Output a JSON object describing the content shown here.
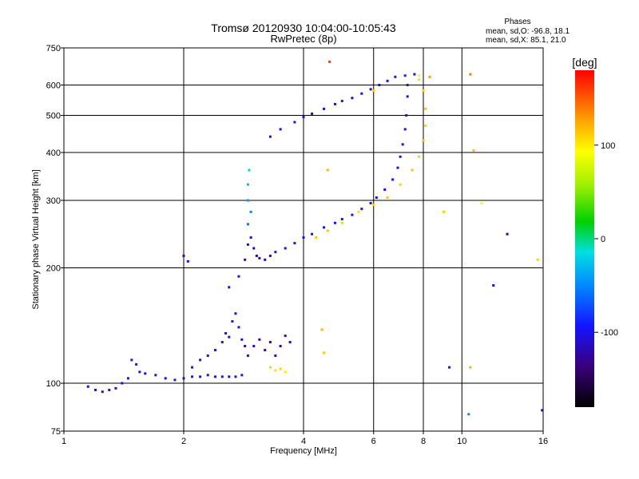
{
  "chart_data": {
    "type": "scatter",
    "title": "Tromsø 20120930 10:04:00-10:05:43",
    "subtitle": "RwPretec (8p)",
    "xlabel": "Frequency [MHz]",
    "ylabel": "Stationary phase Virtual Height [km]",
    "x_scale": "log",
    "y_scale": "log",
    "xlim": [
      1,
      16
    ],
    "ylim": [
      75,
      750
    ],
    "x_ticks": [
      1,
      2,
      4,
      6,
      8,
      10,
      16
    ],
    "y_ticks": [
      75,
      100,
      200,
      300,
      400,
      500,
      600,
      750
    ],
    "grid": true,
    "stats": {
      "heading": "Phases",
      "o_line": "mean, sd,O: -96.8, 18.1",
      "x_line": "mean, sd,X:  85.1, 21.0"
    },
    "colorbar": {
      "label": "[deg]",
      "range": [
        -180,
        180
      ],
      "ticks": [
        100,
        0,
        -100
      ]
    },
    "series": [
      {
        "points": [
          [
            1.15,
            98,
            -110
          ],
          [
            1.2,
            96,
            -105
          ],
          [
            1.25,
            95,
            -115
          ],
          [
            1.3,
            96,
            -100
          ],
          [
            1.35,
            97,
            -110
          ],
          [
            1.4,
            100,
            -105
          ],
          [
            1.45,
            103,
            -100
          ],
          [
            1.48,
            115,
            -100
          ],
          [
            1.52,
            112,
            -95
          ],
          [
            1.55,
            107,
            -100
          ],
          [
            1.6,
            106,
            -105
          ],
          [
            1.7,
            105,
            -100
          ],
          [
            1.8,
            103,
            -105
          ],
          [
            1.9,
            102,
            -100
          ],
          [
            2.0,
            103,
            -105
          ],
          [
            2.1,
            104,
            -100
          ],
          [
            2.2,
            104,
            -110
          ],
          [
            2.3,
            105,
            -100
          ],
          [
            2.4,
            104,
            -105
          ],
          [
            2.5,
            104,
            -100
          ],
          [
            2.6,
            104,
            -105
          ],
          [
            2.7,
            104,
            -100
          ],
          [
            2.8,
            105,
            -95
          ],
          [
            2.1,
            110,
            -100
          ],
          [
            2.2,
            115,
            -105
          ],
          [
            2.3,
            118,
            -100
          ],
          [
            2.4,
            122,
            -95
          ],
          [
            2.5,
            128,
            -100
          ],
          [
            2.55,
            135,
            -105
          ],
          [
            2.6,
            132,
            -100
          ],
          [
            2.65,
            145,
            -95
          ],
          [
            2.7,
            152,
            -100
          ],
          [
            2.75,
            140,
            -100
          ],
          [
            2.8,
            130,
            -105
          ],
          [
            2.85,
            125,
            -110
          ],
          [
            2.9,
            118,
            -100
          ],
          [
            3.0,
            125,
            -110
          ],
          [
            3.1,
            130,
            -115
          ],
          [
            3.2,
            122,
            -120
          ],
          [
            3.3,
            128,
            -125
          ],
          [
            3.4,
            118,
            -110
          ],
          [
            3.5,
            125,
            -130
          ],
          [
            3.6,
            133,
            -115
          ],
          [
            3.7,
            128,
            -120
          ],
          [
            3.3,
            110,
            110
          ],
          [
            3.4,
            108,
            105
          ],
          [
            3.5,
            109,
            110
          ],
          [
            3.6,
            107,
            100
          ],
          [
            2.85,
            210,
            -110
          ],
          [
            2.9,
            230,
            -100
          ],
          [
            2.9,
            260,
            -60
          ],
          [
            2.9,
            300,
            -40
          ],
          [
            2.9,
            330,
            -30
          ],
          [
            2.92,
            360,
            -20
          ],
          [
            2.95,
            280,
            -50
          ],
          [
            2.95,
            240,
            -100
          ],
          [
            3.0,
            225,
            -120
          ],
          [
            3.05,
            215,
            -130
          ],
          [
            3.1,
            212,
            -120
          ],
          [
            3.2,
            210,
            -130
          ],
          [
            3.3,
            215,
            -110
          ],
          [
            3.4,
            220,
            -100
          ],
          [
            3.6,
            225,
            -105
          ],
          [
            3.8,
            232,
            -100
          ],
          [
            4.0,
            240,
            -100
          ],
          [
            4.2,
            245,
            -95
          ],
          [
            4.5,
            255,
            -100
          ],
          [
            4.8,
            262,
            -105
          ],
          [
            5.0,
            268,
            -100
          ],
          [
            5.3,
            275,
            -100
          ],
          [
            5.6,
            285,
            -100
          ],
          [
            5.9,
            295,
            -100
          ],
          [
            6.1,
            305,
            -105
          ],
          [
            6.4,
            320,
            -100
          ],
          [
            6.7,
            340,
            -95
          ],
          [
            6.9,
            365,
            -100
          ],
          [
            7.0,
            390,
            -105
          ],
          [
            7.1,
            420,
            -100
          ],
          [
            7.2,
            460,
            -100
          ],
          [
            7.25,
            500,
            -105
          ],
          [
            7.3,
            560,
            -100
          ],
          [
            7.3,
            600,
            -95
          ],
          [
            4.3,
            240,
            110
          ],
          [
            4.6,
            250,
            115
          ],
          [
            5.0,
            262,
            110
          ],
          [
            5.5,
            280,
            105
          ],
          [
            6.0,
            292,
            110
          ],
          [
            6.5,
            305,
            115
          ],
          [
            7.0,
            330,
            110
          ],
          [
            7.5,
            360,
            115
          ],
          [
            7.8,
            390,
            110
          ],
          [
            8.0,
            430,
            115
          ],
          [
            8.1,
            470,
            110
          ],
          [
            8.1,
            520,
            115
          ],
          [
            8.0,
            580,
            110
          ],
          [
            7.8,
            620,
            105
          ],
          [
            3.3,
            440,
            -110
          ],
          [
            3.5,
            460,
            -100
          ],
          [
            3.8,
            480,
            -105
          ],
          [
            4.0,
            495,
            -100
          ],
          [
            4.2,
            505,
            -110
          ],
          [
            4.5,
            520,
            -100
          ],
          [
            4.8,
            535,
            -105
          ],
          [
            5.0,
            545,
            -100
          ],
          [
            5.3,
            555,
            -110
          ],
          [
            5.6,
            570,
            -105
          ],
          [
            5.9,
            585,
            -100
          ],
          [
            6.2,
            600,
            -105
          ],
          [
            6.5,
            615,
            -100
          ],
          [
            6.8,
            630,
            -95
          ],
          [
            7.2,
            635,
            -90
          ],
          [
            7.6,
            640,
            -100
          ],
          [
            7.8,
            635,
            95
          ],
          [
            4.65,
            690,
            160
          ],
          [
            8.3,
            630,
            130
          ],
          [
            10.5,
            640,
            140
          ],
          [
            6.0,
            580,
            110
          ],
          [
            2.0,
            215,
            -110
          ],
          [
            2.05,
            208,
            -100
          ],
          [
            2.6,
            178,
            -110
          ],
          [
            2.75,
            190,
            -100
          ],
          [
            9.0,
            280,
            110
          ],
          [
            10.7,
            405,
            115
          ],
          [
            13.0,
            245,
            -120
          ],
          [
            15.5,
            210,
            110
          ],
          [
            11.2,
            295,
            90
          ],
          [
            12.0,
            180,
            -110
          ],
          [
            9.3,
            110,
            -100
          ],
          [
            10.5,
            110,
            120
          ],
          [
            10.4,
            83,
            -50
          ],
          [
            15.9,
            85,
            -105
          ],
          [
            4.6,
            360,
            120
          ],
          [
            4.5,
            120,
            110
          ],
          [
            4.45,
            138,
            120
          ]
        ]
      }
    ]
  }
}
